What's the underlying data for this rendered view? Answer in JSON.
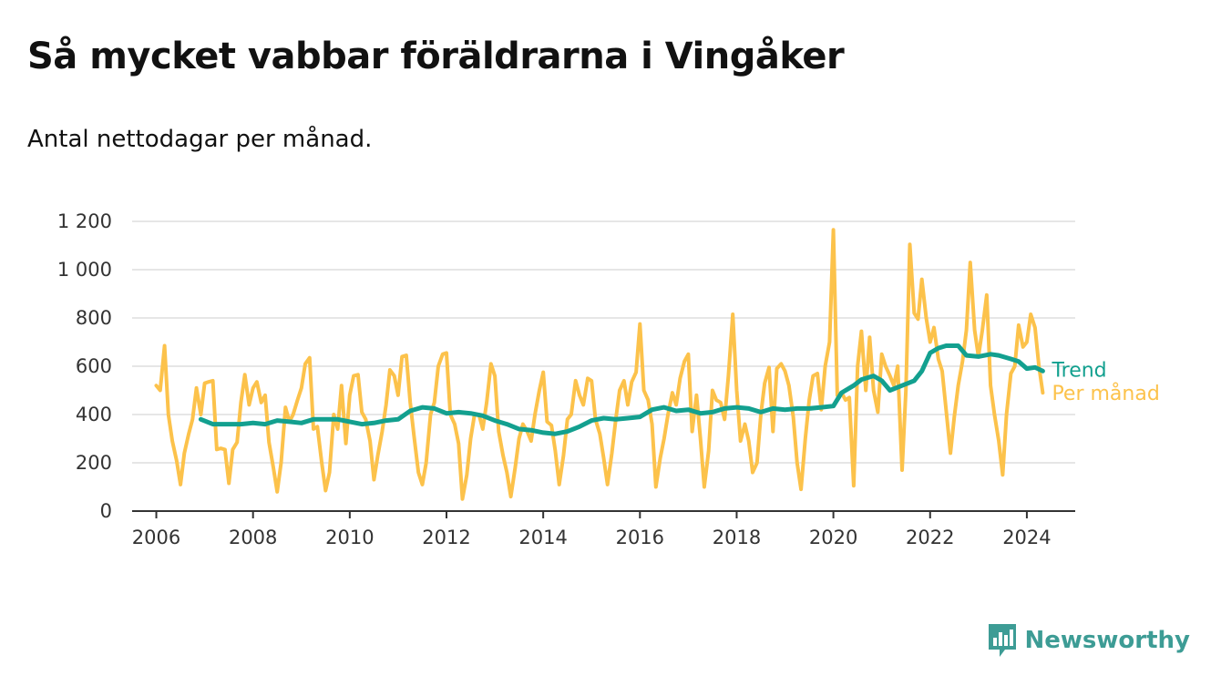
{
  "title": "Så mycket vabbar föräldrarna i Vingåker",
  "subtitle": "Antal nettodagar per månad.",
  "brand": "Newsworthy",
  "colors": {
    "trend": "#13a08f",
    "monthly": "#fcc24b",
    "grid": "#dddddd",
    "brand": "#3d9c95"
  },
  "chart_data": {
    "type": "line",
    "ylim": [
      0,
      1200
    ],
    "yticks": [
      0,
      200,
      400,
      600,
      800,
      1000,
      1200
    ],
    "ytick_labels": [
      "0",
      "200",
      "400",
      "600",
      "800",
      "1 000",
      "1 200"
    ],
    "xlim": [
      2005.5,
      2025.0
    ],
    "xticks": [
      2006,
      2008,
      2010,
      2012,
      2014,
      2016,
      2018,
      2020,
      2022,
      2024
    ],
    "xtick_labels": [
      "2006",
      "2008",
      "2010",
      "2012",
      "2014",
      "2016",
      "2018",
      "2020",
      "2022",
      "2024"
    ],
    "grid": true,
    "series": [
      {
        "name": "Per månad",
        "color": "#fcc24b",
        "x": [
          2006.0,
          2006.08,
          2006.17,
          2006.25,
          2006.33,
          2006.42,
          2006.5,
          2006.58,
          2006.67,
          2006.75,
          2006.83,
          2006.92,
          2007.0,
          2007.08,
          2007.17,
          2007.25,
          2007.33,
          2007.42,
          2007.5,
          2007.58,
          2007.67,
          2007.75,
          2007.83,
          2007.92,
          2008.0,
          2008.08,
          2008.17,
          2008.25,
          2008.33,
          2008.42,
          2008.5,
          2008.58,
          2008.67,
          2008.75,
          2008.83,
          2008.92,
          2009.0,
          2009.08,
          2009.17,
          2009.25,
          2009.33,
          2009.42,
          2009.5,
          2009.58,
          2009.67,
          2009.75,
          2009.83,
          2009.92,
          2010.0,
          2010.08,
          2010.17,
          2010.25,
          2010.33,
          2010.42,
          2010.5,
          2010.58,
          2010.67,
          2010.75,
          2010.83,
          2010.92,
          2011.0,
          2011.08,
          2011.17,
          2011.25,
          2011.33,
          2011.42,
          2011.5,
          2011.58,
          2011.67,
          2011.75,
          2011.83,
          2011.92,
          2012.0,
          2012.08,
          2012.17,
          2012.25,
          2012.33,
          2012.42,
          2012.5,
          2012.58,
          2012.67,
          2012.75,
          2012.83,
          2012.92,
          2013.0,
          2013.08,
          2013.17,
          2013.25,
          2013.33,
          2013.42,
          2013.5,
          2013.58,
          2013.67,
          2013.75,
          2013.83,
          2013.92,
          2014.0,
          2014.08,
          2014.17,
          2014.25,
          2014.33,
          2014.42,
          2014.5,
          2014.58,
          2014.67,
          2014.75,
          2014.83,
          2014.92,
          2015.0,
          2015.08,
          2015.17,
          2015.25,
          2015.33,
          2015.42,
          2015.5,
          2015.58,
          2015.67,
          2015.75,
          2015.83,
          2015.92,
          2016.0,
          2016.08,
          2016.17,
          2016.25,
          2016.33,
          2016.42,
          2016.5,
          2016.58,
          2016.67,
          2016.75,
          2016.83,
          2016.92,
          2017.0,
          2017.08,
          2017.17,
          2017.25,
          2017.33,
          2017.42,
          2017.5,
          2017.58,
          2017.67,
          2017.75,
          2017.83,
          2017.92,
          2018.0,
          2018.08,
          2018.17,
          2018.25,
          2018.33,
          2018.42,
          2018.5,
          2018.58,
          2018.67,
          2018.75,
          2018.83,
          2018.92,
          2019.0,
          2019.08,
          2019.17,
          2019.25,
          2019.33,
          2019.42,
          2019.5,
          2019.58,
          2019.67,
          2019.75,
          2019.83,
          2019.92,
          2020.0,
          2020.08,
          2020.17,
          2020.25,
          2020.33,
          2020.42,
          2020.5,
          2020.58,
          2020.67,
          2020.75,
          2020.83,
          2020.92,
          2021.0,
          2021.08,
          2021.17,
          2021.25,
          2021.33,
          2021.42,
          2021.5,
          2021.58,
          2021.67,
          2021.75,
          2021.83,
          2021.92,
          2022.0,
          2022.08,
          2022.17,
          2022.25,
          2022.33,
          2022.42,
          2022.5,
          2022.58,
          2022.67,
          2022.75,
          2022.83,
          2022.92,
          2023.0,
          2023.08,
          2023.17,
          2023.25,
          2023.33,
          2023.42,
          2023.5,
          2023.58,
          2023.67,
          2023.75,
          2023.83,
          2023.92,
          2024.0,
          2024.08,
          2024.17,
          2024.25,
          2024.33
        ],
        "values": [
          520,
          500,
          685,
          400,
          290,
          210,
          110,
          240,
          320,
          380,
          510,
          400,
          530,
          535,
          540,
          255,
          260,
          255,
          115,
          255,
          285,
          450,
          565,
          440,
          510,
          535,
          450,
          480,
          285,
          180,
          80,
          200,
          430,
          370,
          400,
          460,
          510,
          610,
          635,
          340,
          350,
          200,
          85,
          160,
          400,
          340,
          520,
          280,
          480,
          560,
          565,
          410,
          380,
          290,
          130,
          230,
          330,
          440,
          585,
          560,
          480,
          640,
          645,
          450,
          310,
          160,
          110,
          200,
          400,
          450,
          600,
          650,
          655,
          400,
          360,
          280,
          50,
          150,
          300,
          400,
          400,
          340,
          450,
          610,
          560,
          330,
          230,
          160,
          60,
          180,
          300,
          360,
          330,
          290,
          400,
          500,
          575,
          370,
          355,
          250,
          110,
          230,
          380,
          400,
          540,
          480,
          440,
          550,
          540,
          380,
          320,
          220,
          110,
          240,
          380,
          500,
          540,
          440,
          535,
          575,
          775,
          500,
          460,
          360,
          100,
          220,
          300,
          400,
          490,
          440,
          550,
          620,
          650,
          330,
          480,
          300,
          100,
          250,
          500,
          460,
          450,
          380,
          560,
          815,
          500,
          290,
          360,
          290,
          160,
          200,
          400,
          530,
          595,
          330,
          590,
          610,
          580,
          520,
          390,
          200,
          90,
          300,
          460,
          560,
          570,
          420,
          600,
          700,
          1165,
          480,
          490,
          460,
          470,
          105,
          600,
          745,
          500,
          720,
          500,
          410,
          650,
          600,
          560,
          520,
          600,
          170,
          500,
          1105,
          820,
          795,
          960,
          800,
          700,
          760,
          630,
          580,
          420,
          240,
          390,
          520,
          620,
          750,
          1030,
          750,
          640,
          750,
          895,
          520,
          400,
          290,
          150,
          400,
          570,
          600,
          770,
          680,
          700,
          815,
          760,
          600,
          490
        ]
      },
      {
        "name": "Trend",
        "color": "#13a08f",
        "x": [
          2006.92,
          2007.17,
          2007.5,
          2007.75,
          2008.0,
          2008.25,
          2008.5,
          2008.75,
          2009.0,
          2009.25,
          2009.5,
          2009.75,
          2010.0,
          2010.25,
          2010.5,
          2010.75,
          2011.0,
          2011.25,
          2011.5,
          2011.75,
          2012.0,
          2012.25,
          2012.5,
          2012.75,
          2013.0,
          2013.25,
          2013.5,
          2013.75,
          2014.0,
          2014.25,
          2014.5,
          2014.75,
          2015.0,
          2015.25,
          2015.5,
          2015.75,
          2016.0,
          2016.25,
          2016.5,
          2016.75,
          2017.0,
          2017.25,
          2017.5,
          2017.75,
          2018.0,
          2018.25,
          2018.5,
          2018.75,
          2019.0,
          2019.25,
          2019.5,
          2019.75,
          2020.0,
          2020.17,
          2020.42,
          2020.58,
          2020.83,
          2021.0,
          2021.17,
          2021.42,
          2021.67,
          2021.83,
          2022.0,
          2022.17,
          2022.33,
          2022.58,
          2022.75,
          2023.0,
          2023.25,
          2023.42,
          2023.67,
          2023.83,
          2024.0,
          2024.17,
          2024.33
        ],
        "values": [
          380,
          360,
          360,
          360,
          365,
          360,
          375,
          370,
          365,
          380,
          380,
          380,
          370,
          360,
          365,
          375,
          380,
          415,
          430,
          425,
          405,
          410,
          405,
          395,
          375,
          360,
          340,
          335,
          325,
          320,
          330,
          350,
          375,
          385,
          380,
          385,
          390,
          420,
          430,
          415,
          420,
          405,
          410,
          425,
          430,
          425,
          410,
          425,
          420,
          425,
          425,
          430,
          435,
          490,
          520,
          545,
          560,
          540,
          500,
          520,
          540,
          580,
          655,
          675,
          685,
          685,
          645,
          640,
          650,
          645,
          630,
          620,
          590,
          595,
          580
        ]
      }
    ]
  }
}
